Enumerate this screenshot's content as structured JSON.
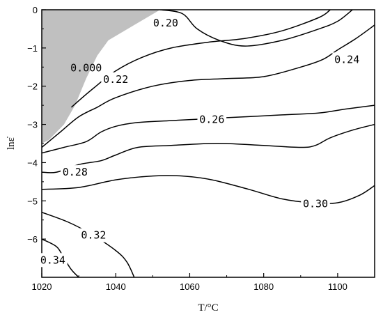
{
  "chart_data": {
    "type": "contour",
    "xlabel": "T/°C",
    "ylabel": "lnε̇",
    "xlim": [
      1020,
      1110
    ],
    "ylim": [
      -7,
      0
    ],
    "x_ticks": [
      1020,
      1040,
      1060,
      1080,
      1100
    ],
    "y_ticks": [
      0,
      -1,
      -2,
      -3,
      -4,
      -5,
      -6
    ],
    "instability_region": {
      "color": "#c0c0c0",
      "label": "0.000",
      "boundary": [
        [
          1020,
          0
        ],
        [
          1052,
          0
        ],
        [
          1045,
          -0.4
        ],
        [
          1038,
          -0.8
        ],
        [
          1035,
          -1.2
        ],
        [
          1032,
          -1.8
        ],
        [
          1029,
          -2.5
        ],
        [
          1026,
          -3.0
        ],
        [
          1022,
          -3.4
        ],
        [
          1020,
          -3.5
        ]
      ]
    },
    "contours": [
      {
        "level": "0.20",
        "points": [
          [
            1052,
            0
          ],
          [
            1058,
            -0.1
          ],
          [
            1062,
            -0.5
          ],
          [
            1068,
            -0.8
          ],
          [
            1075,
            -0.95
          ],
          [
            1085,
            -0.8
          ],
          [
            1095,
            -0.5
          ],
          [
            1100,
            -0.3
          ],
          [
            1104,
            0
          ]
        ]
      },
      {
        "level": "0.22",
        "points": [
          [
            1028,
            -2.55
          ],
          [
            1034,
            -2.05
          ],
          [
            1040,
            -1.6
          ],
          [
            1047,
            -1.25
          ],
          [
            1055,
            -1.0
          ],
          [
            1065,
            -0.85
          ],
          [
            1075,
            -0.75
          ],
          [
            1085,
            -0.55
          ],
          [
            1095,
            -0.2
          ],
          [
            1098,
            0
          ]
        ]
      },
      {
        "level": "0.24",
        "points": [
          [
            1020,
            -3.6
          ],
          [
            1025,
            -3.2
          ],
          [
            1030,
            -2.8
          ],
          [
            1035,
            -2.55
          ],
          [
            1040,
            -2.3
          ],
          [
            1050,
            -2.0
          ],
          [
            1060,
            -1.85
          ],
          [
            1070,
            -1.8
          ],
          [
            1080,
            -1.75
          ],
          [
            1090,
            -1.5
          ],
          [
            1096,
            -1.3
          ],
          [
            1100,
            -1.05
          ],
          [
            1105,
            -0.75
          ],
          [
            1110,
            -0.4
          ]
        ]
      },
      {
        "level": "0.26",
        "points": [
          [
            1020,
            -3.75
          ],
          [
            1026,
            -3.6
          ],
          [
            1032,
            -3.45
          ],
          [
            1036,
            -3.2
          ],
          [
            1040,
            -3.05
          ],
          [
            1046,
            -2.95
          ],
          [
            1055,
            -2.9
          ],
          [
            1065,
            -2.85
          ],
          [
            1075,
            -2.8
          ],
          [
            1085,
            -2.75
          ],
          [
            1095,
            -2.7
          ],
          [
            1102,
            -2.6
          ],
          [
            1110,
            -2.5
          ]
        ]
      },
      {
        "level": "0.28",
        "points": [
          [
            1020,
            -4.25
          ],
          [
            1024,
            -4.25
          ],
          [
            1030,
            -4.05
          ],
          [
            1036,
            -3.95
          ],
          [
            1040,
            -3.8
          ],
          [
            1046,
            -3.6
          ],
          [
            1055,
            -3.55
          ],
          [
            1065,
            -3.5
          ],
          [
            1070,
            -3.5
          ],
          [
            1080,
            -3.55
          ],
          [
            1090,
            -3.6
          ],
          [
            1094,
            -3.55
          ],
          [
            1098,
            -3.35
          ],
          [
            1104,
            -3.15
          ],
          [
            1110,
            -3.0
          ]
        ]
      },
      {
        "level": "0.30",
        "points": [
          [
            1020,
            -4.7
          ],
          [
            1030,
            -4.65
          ],
          [
            1040,
            -4.45
          ],
          [
            1050,
            -4.35
          ],
          [
            1058,
            -4.35
          ],
          [
            1066,
            -4.45
          ],
          [
            1076,
            -4.7
          ],
          [
            1085,
            -4.95
          ],
          [
            1093,
            -5.05
          ],
          [
            1100,
            -5.05
          ],
          [
            1106,
            -4.85
          ],
          [
            1110,
            -4.6
          ]
        ]
      },
      {
        "level": "0.32",
        "points": [
          [
            1020,
            -5.3
          ],
          [
            1027,
            -5.55
          ],
          [
            1033,
            -5.85
          ],
          [
            1040,
            -6.3
          ],
          [
            1043,
            -6.6
          ],
          [
            1045,
            -7.0
          ]
        ]
      },
      {
        "level": "0.34",
        "points": [
          [
            1020,
            -6.0
          ],
          [
            1024,
            -6.2
          ],
          [
            1026,
            -6.5
          ],
          [
            1028,
            -6.8
          ],
          [
            1030,
            -7.0
          ]
        ]
      }
    ],
    "label_positions": [
      {
        "text": "0.20",
        "x": 1053.5,
        "y": -0.35
      },
      {
        "text": "0.000",
        "x": 1032,
        "y": -1.52
      },
      {
        "text": "0.22",
        "x": 1040,
        "y": -1.82
      },
      {
        "text": "0.24",
        "x": 1102.5,
        "y": -1.3
      },
      {
        "text": "0.26",
        "x": 1066,
        "y": -2.87
      },
      {
        "text": "0.28",
        "x": 1029,
        "y": -4.25
      },
      {
        "text": "0.30",
        "x": 1094,
        "y": -5.08
      },
      {
        "text": "0.32",
        "x": 1034,
        "y": -5.9
      },
      {
        "text": "0.34",
        "x": 1023,
        "y": -6.55
      }
    ]
  }
}
